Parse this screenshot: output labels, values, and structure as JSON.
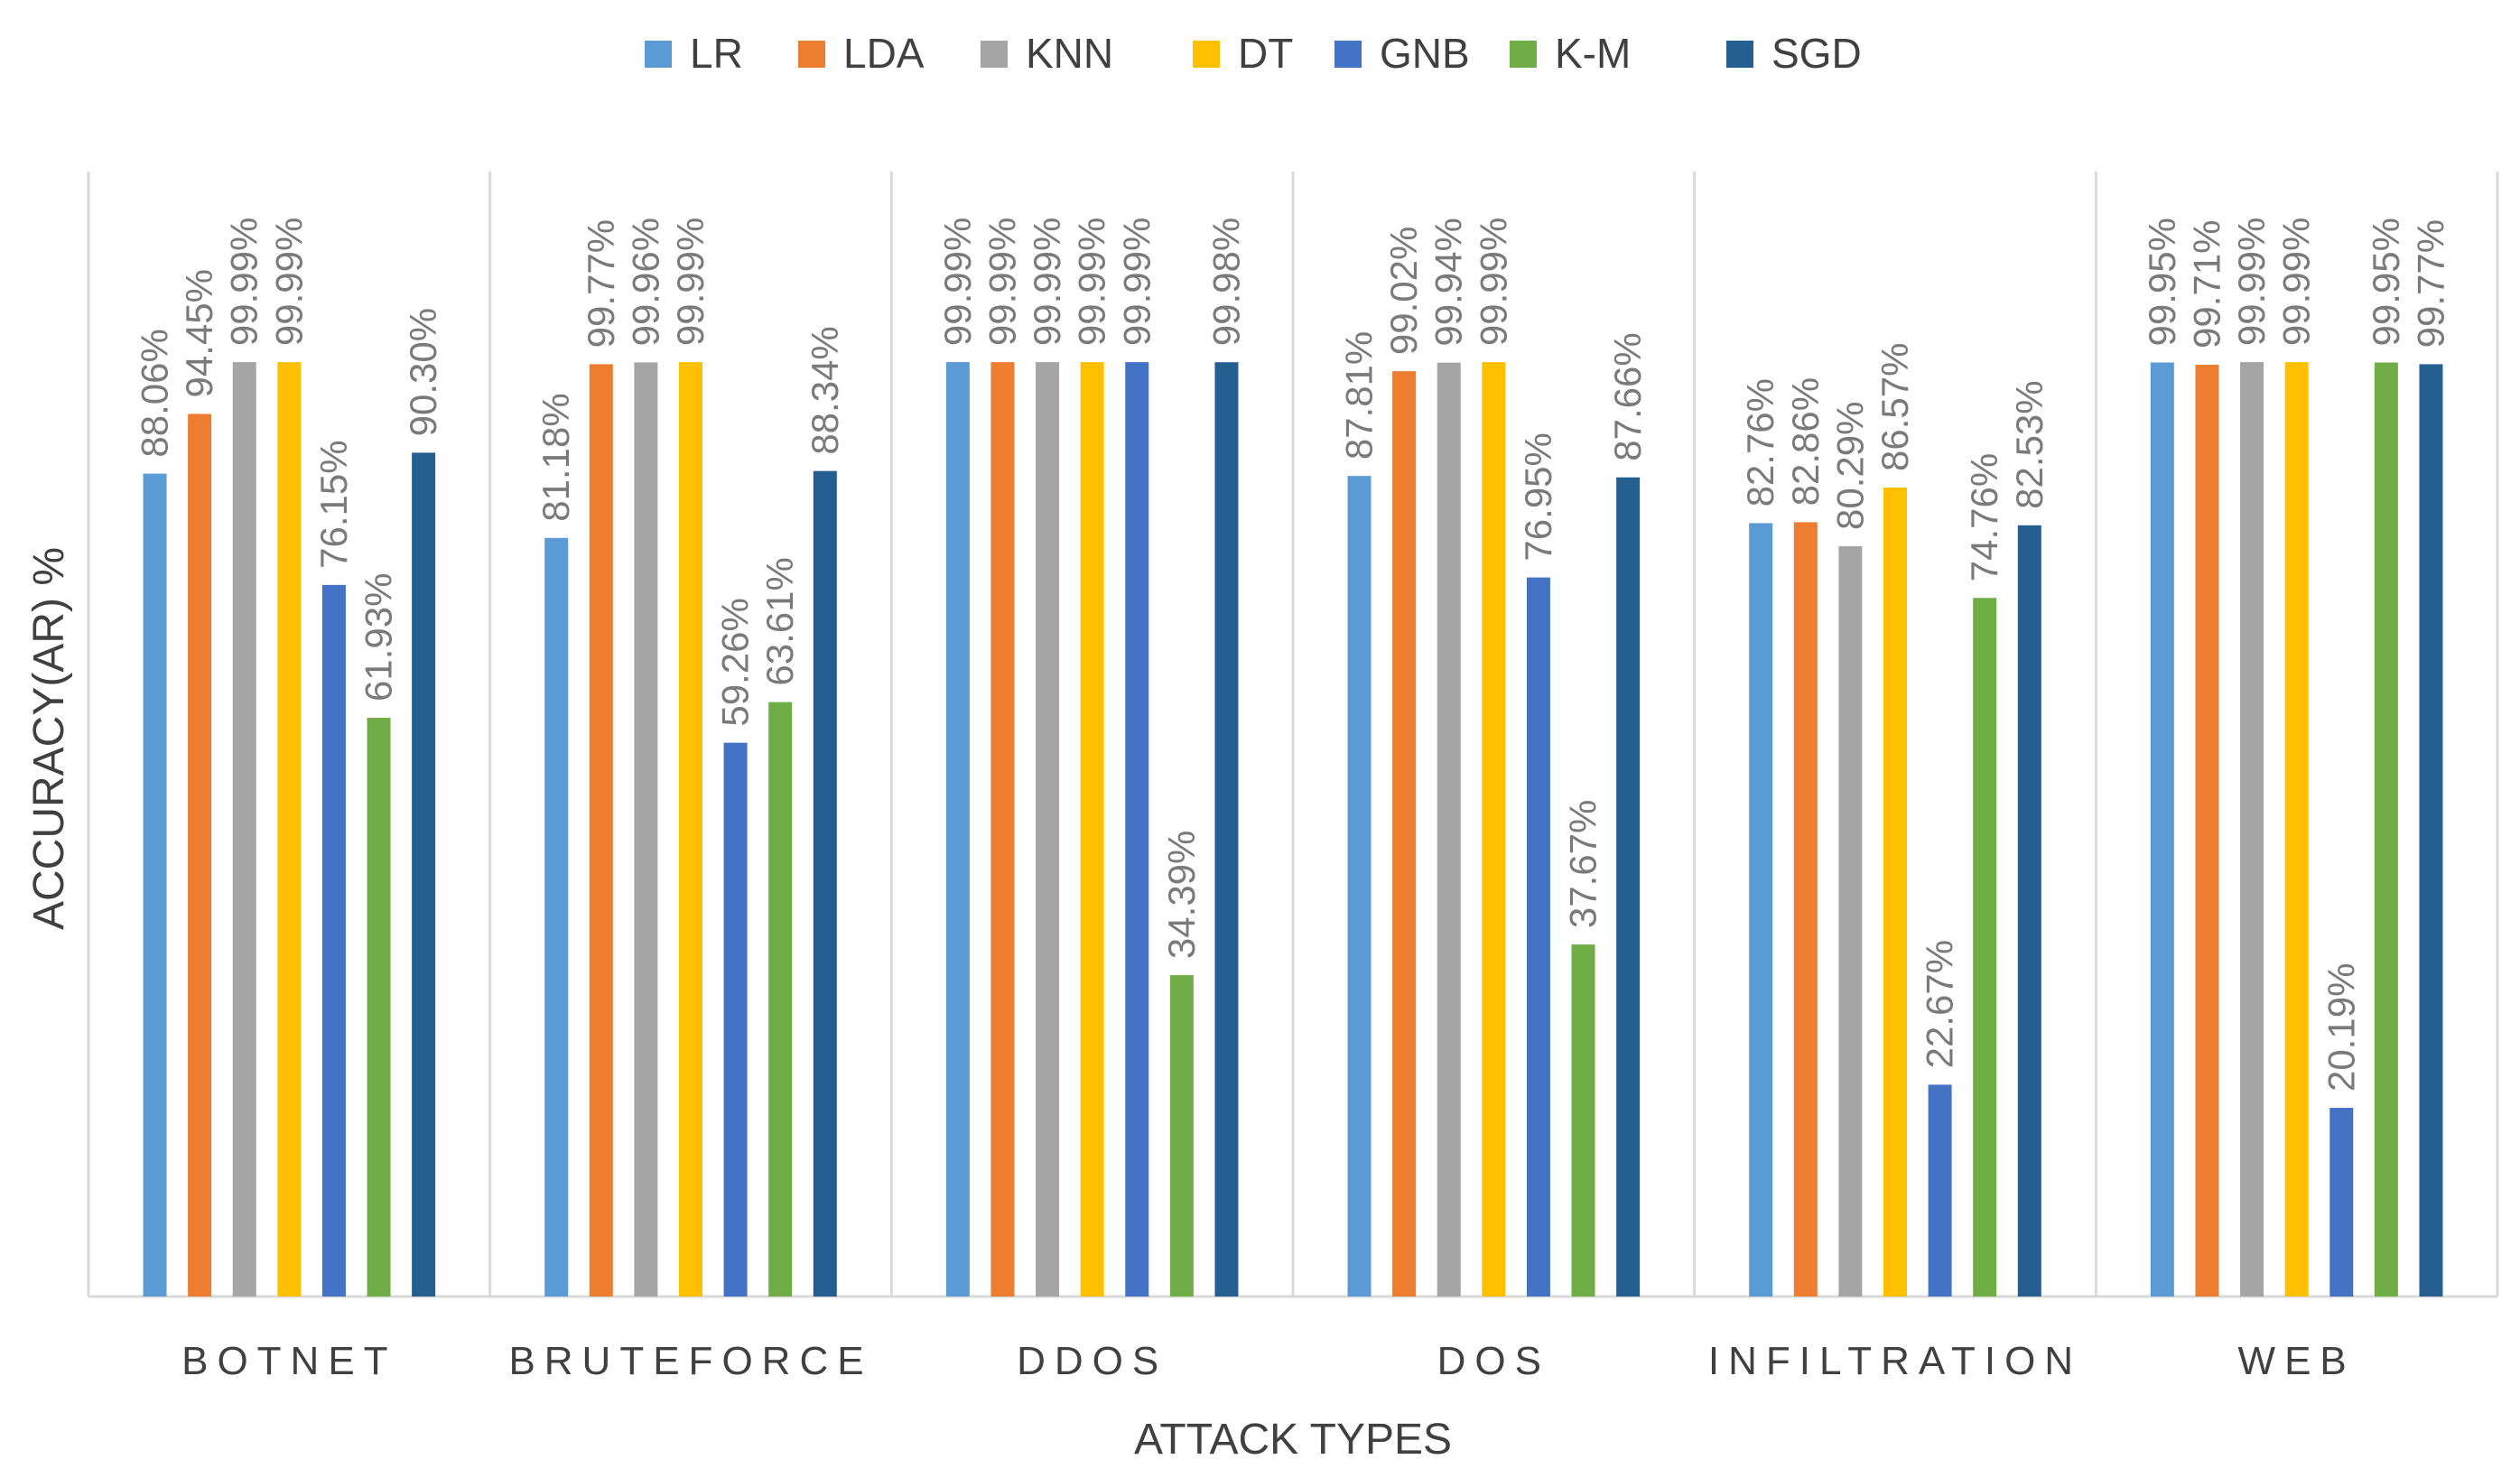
{
  "chart_data": {
    "type": "bar",
    "title": "",
    "xlabel": "ATTACK TYPES",
    "ylabel": "ACCURACY(AR) %",
    "ylim": [
      0,
      100
    ],
    "grid": false,
    "legend_position": "top",
    "categories": [
      "BOTNET",
      "BRUTEFORCE",
      "DDOS",
      "DOS",
      "INFILTRATION",
      "WEB"
    ],
    "series": [
      {
        "name": "LR",
        "color": "#5b9bd5",
        "values": [
          88.06,
          81.18,
          99.99,
          87.81,
          82.76,
          99.95
        ],
        "labels": [
          "88.06%",
          "81.18%",
          "99.99%",
          "87.81%",
          "82.76%",
          "99.95%"
        ]
      },
      {
        "name": "LDA",
        "color": "#ed7d31",
        "values": [
          94.45,
          99.77,
          99.99,
          99.02,
          82.86,
          99.71
        ],
        "labels": [
          "94.45%",
          "99.77%",
          "99.99%",
          "99.02%",
          "82.86%",
          "99.71%"
        ]
      },
      {
        "name": "KNN",
        "color": "#a5a5a5",
        "values": [
          99.99,
          99.96,
          99.99,
          99.94,
          80.29,
          99.99
        ],
        "labels": [
          "99.99%",
          "99.96%",
          "99.99%",
          "99.94%",
          "80.29%",
          "99.99%"
        ]
      },
      {
        "name": "DT",
        "color": "#ffc000",
        "values": [
          99.99,
          99.99,
          99.99,
          99.99,
          86.57,
          99.99
        ],
        "labels": [
          "99.99%",
          "99.99%",
          "99.99%",
          "99.99%",
          "86.57%",
          "99.99%"
        ]
      },
      {
        "name": "GNB",
        "color": "#4472c4",
        "values": [
          76.15,
          59.26,
          99.99,
          76.95,
          22.67,
          20.19
        ],
        "labels": [
          "76.15%",
          "59.26%",
          "99.99%",
          "76.95%",
          "22.67%",
          "20.19%"
        ]
      },
      {
        "name": "K-M",
        "color": "#70ad47",
        "values": [
          61.93,
          63.61,
          34.39,
          37.67,
          74.76,
          99.95
        ],
        "labels": [
          "61.93%",
          "63.61%",
          "34.39%",
          "37.67%",
          "74.76%",
          "99.95%"
        ]
      },
      {
        "name": "SGD",
        "color": "#255e91",
        "values": [
          90.3,
          88.34,
          99.98,
          87.66,
          82.53,
          99.77
        ],
        "labels": [
          "90.30%",
          "88.34%",
          "99.98%",
          "87.66%",
          "82.53%",
          "99.77%"
        ]
      }
    ]
  }
}
